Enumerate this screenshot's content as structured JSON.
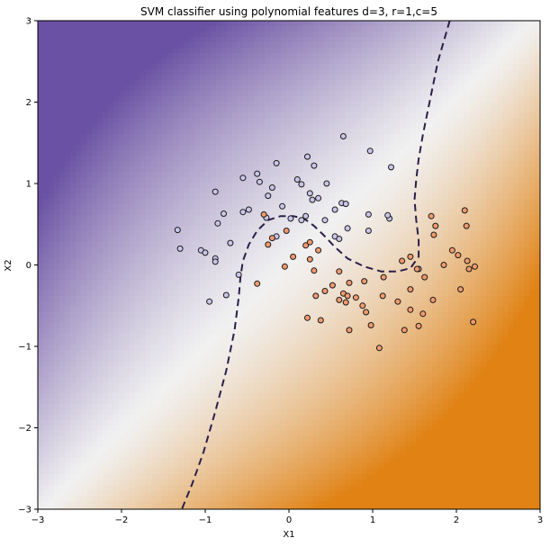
{
  "chart_data": {
    "type": "scatter",
    "title": "SVM classifier using polynomial features d=3, r=1,c=5",
    "xlabel": "X1",
    "ylabel": "X2",
    "xlim": [
      -3,
      3
    ],
    "ylim": [
      -3,
      3
    ],
    "x_ticks": [
      -3,
      -2,
      -1,
      0,
      1,
      2,
      3
    ],
    "y_ticks": [
      -3,
      -2,
      -1,
      0,
      1,
      2,
      3
    ],
    "x_tick_labels": [
      "−3",
      "−2",
      "−1",
      "0",
      "1",
      "2",
      "3"
    ],
    "y_tick_labels": [
      "−3",
      "−2",
      "−1",
      "0",
      "1",
      "2",
      "3"
    ],
    "grid": false,
    "background": {
      "kind": "decision-function-contour",
      "colormap": "purple-to-orange",
      "negative_color": "#6a51a3",
      "neutral_color": "#f1f1f1",
      "positive_color": "#e08214"
    },
    "decision_boundary": {
      "style": "dashed",
      "color": "#2a1f4a",
      "x": [
        1.92,
        1.78,
        1.68,
        1.6,
        1.55,
        1.52,
        1.5,
        1.52,
        1.55,
        1.55,
        1.45,
        1.3,
        1.1,
        0.9,
        0.7,
        0.55,
        0.42,
        0.3,
        0.18,
        0.05,
        -0.1,
        -0.25,
        -0.38,
        -0.48,
        -0.55,
        -0.58,
        -0.6,
        -0.65,
        -0.75,
        -0.88,
        -1.02,
        -1.16,
        -1.28
      ],
      "y": [
        3.0,
        2.5,
        2.0,
        1.6,
        1.3,
        1.05,
        0.8,
        0.55,
        0.3,
        0.1,
        -0.04,
        -0.08,
        -0.08,
        -0.02,
        0.08,
        0.22,
        0.36,
        0.48,
        0.57,
        0.6,
        0.6,
        0.55,
        0.42,
        0.25,
        0.05,
        -0.15,
        -0.4,
        -0.8,
        -1.3,
        -1.8,
        -2.3,
        -2.7,
        -3.0
      ]
    },
    "series": [
      {
        "marker_color": "#c9c6ea",
        "edge_color": "#1a1a1a",
        "points": [
          [
            0.65,
            1.58
          ],
          [
            0.97,
            1.4
          ],
          [
            0.22,
            1.33
          ],
          [
            -0.15,
            1.25
          ],
          [
            0.3,
            1.22
          ],
          [
            1.22,
            1.2
          ],
          [
            -0.38,
            1.12
          ],
          [
            0.1,
            1.05
          ],
          [
            -0.55,
            1.07
          ],
          [
            0.45,
            1.0
          ],
          [
            0.15,
            0.99
          ],
          [
            -0.35,
            1.02
          ],
          [
            -0.2,
            0.95
          ],
          [
            0.25,
            0.88
          ],
          [
            -0.25,
            0.85
          ],
          [
            -0.88,
            0.9
          ],
          [
            0.35,
            0.82
          ],
          [
            0.28,
            0.8
          ],
          [
            0.63,
            0.76
          ],
          [
            0.68,
            0.75
          ],
          [
            0.55,
            0.68
          ],
          [
            -0.08,
            0.72
          ],
          [
            -0.48,
            0.68
          ],
          [
            -0.55,
            0.65
          ],
          [
            -0.78,
            0.63
          ],
          [
            1.2,
            0.57
          ],
          [
            1.18,
            0.61
          ],
          [
            0.95,
            0.62
          ],
          [
            0.2,
            0.6
          ],
          [
            0.02,
            0.57
          ],
          [
            0.15,
            0.55
          ],
          [
            -0.27,
            0.58
          ],
          [
            -0.85,
            0.51
          ],
          [
            0.43,
            0.55
          ],
          [
            -1.33,
            0.43
          ],
          [
            0.55,
            0.35
          ],
          [
            0.6,
            0.32
          ],
          [
            -0.15,
            0.35
          ],
          [
            0.7,
            0.45
          ],
          [
            0.95,
            0.42
          ],
          [
            -1.3,
            0.2
          ],
          [
            -1.05,
            0.18
          ],
          [
            -1.0,
            0.15
          ],
          [
            -0.7,
            0.27
          ],
          [
            -0.88,
            0.08
          ],
          [
            -0.88,
            0.04
          ],
          [
            1.55,
            -0.05
          ],
          [
            -0.6,
            -0.12
          ],
          [
            -0.75,
            -0.37
          ],
          [
            -0.95,
            -0.45
          ]
        ]
      },
      {
        "marker_color": "#f29a6e",
        "edge_color": "#1a1a1a",
        "points": [
          [
            2.1,
            0.67
          ],
          [
            1.7,
            0.6
          ],
          [
            2.12,
            0.48
          ],
          [
            1.75,
            0.48
          ],
          [
            1.73,
            0.37
          ],
          [
            -0.3,
            0.62
          ],
          [
            -0.03,
            0.42
          ],
          [
            -0.2,
            0.33
          ],
          [
            -0.25,
            0.25
          ],
          [
            0.25,
            0.28
          ],
          [
            0.2,
            0.24
          ],
          [
            0.35,
            0.18
          ],
          [
            1.95,
            0.18
          ],
          [
            2.02,
            0.12
          ],
          [
            2.13,
            0.05
          ],
          [
            1.85,
            0.0
          ],
          [
            2.22,
            -0.02
          ],
          [
            2.15,
            -0.05
          ],
          [
            1.53,
            -0.05
          ],
          [
            0.25,
            0.07
          ],
          [
            0.05,
            0.1
          ],
          [
            1.45,
            0.1
          ],
          [
            1.35,
            0.05
          ],
          [
            -0.05,
            -0.02
          ],
          [
            0.3,
            -0.07
          ],
          [
            0.6,
            -0.08
          ],
          [
            1.62,
            -0.15
          ],
          [
            1.13,
            -0.15
          ],
          [
            -0.38,
            -0.23
          ],
          [
            0.9,
            -0.2
          ],
          [
            0.72,
            -0.22
          ],
          [
            0.52,
            -0.25
          ],
          [
            1.45,
            -0.3
          ],
          [
            2.05,
            -0.3
          ],
          [
            0.43,
            -0.32
          ],
          [
            0.65,
            -0.35
          ],
          [
            0.7,
            -0.38
          ],
          [
            1.12,
            -0.38
          ],
          [
            0.32,
            -0.38
          ],
          [
            0.8,
            -0.4
          ],
          [
            0.6,
            -0.43
          ],
          [
            1.3,
            -0.45
          ],
          [
            0.68,
            -0.46
          ],
          [
            1.72,
            -0.43
          ],
          [
            0.92,
            -0.58
          ],
          [
            1.45,
            -0.55
          ],
          [
            0.88,
            -0.5
          ],
          [
            1.6,
            -0.6
          ],
          [
            0.22,
            -0.65
          ],
          [
            1.55,
            -0.75
          ],
          [
            0.38,
            -0.68
          ],
          [
            0.98,
            -0.74
          ],
          [
            2.2,
            -0.7
          ],
          [
            0.72,
            -0.8
          ],
          [
            1.38,
            -0.8
          ],
          [
            1.08,
            -1.02
          ]
        ]
      }
    ]
  }
}
